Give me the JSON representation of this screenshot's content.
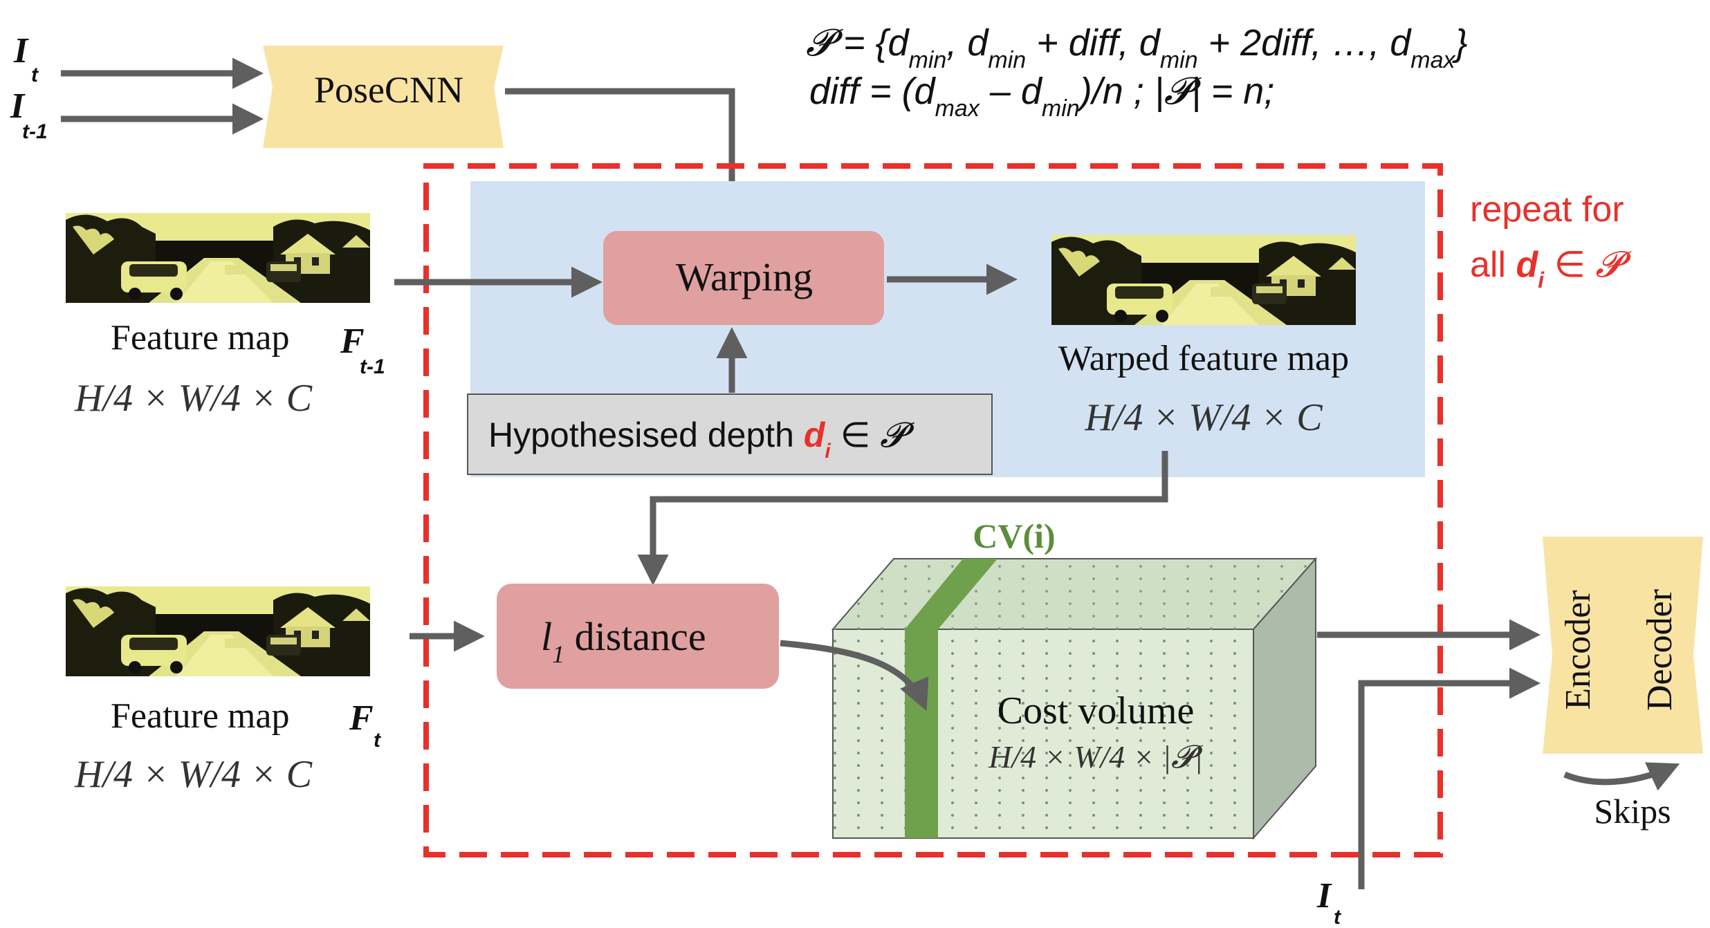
{
  "colors": {
    "arrow": "#5f5f5f",
    "posecnn_fill": "#f9e3a3",
    "warp_region_fill": "#d3e2f2",
    "node_fill": "#e0a0a0",
    "hyp_fill": "#d9d9d9",
    "repeat_box": "#e8312a",
    "cost_front": "#dfebd6",
    "cost_top": "#cfdfc5",
    "cost_side": "#adbcaa",
    "cv_slice": "#6fa14c",
    "cv_label": "#5b8e3a",
    "encdec_fill": "#f9e3a3",
    "highlight_red": "#e8312a"
  },
  "inputs": {
    "it_main": "I",
    "it_sub": "t",
    "it1_main": "I",
    "it1_sub": "t-1",
    "bottom_it_main": "I",
    "bottom_it_sub": "t"
  },
  "posecnn": {
    "label": "PoseCNN"
  },
  "formula": {
    "line1": {
      "p": "𝓟",
      "eq_open": " = {d",
      "sub_min": "min",
      "comma1": ", d",
      "plus1": " + diff, d",
      "plus2": " + 2diff, …, d",
      "sub_max": "max",
      "close": "}"
    },
    "line2": {
      "diff_eq": "diff = (d",
      "sub_max": "max",
      "minus": " – d",
      "sub_min": "min",
      "div": ")/n ; |",
      "p": "𝓟",
      "tail": "| = n;"
    }
  },
  "repeat_note": {
    "line1": "repeat for",
    "line2_prefix": "all ",
    "d": "d",
    "d_sub": "i",
    "line2_suffix": " ∈ ",
    "p": "𝓟"
  },
  "feature_top": {
    "label": "Feature map",
    "symbol": "F",
    "symbol_sub": "t-1",
    "dims": "H/4 × W/4 × C"
  },
  "feature_bottom": {
    "label": "Feature map",
    "symbol": "F",
    "symbol_sub": "t",
    "dims": "H/4 × W/4 × C"
  },
  "warping": {
    "label": "Warping"
  },
  "hypothesis": {
    "prefix": "Hypothesised depth ",
    "d": "d",
    "d_sub": "i",
    "suffix": " ∈ ",
    "p": "𝓟"
  },
  "warped": {
    "label": "Warped feature map",
    "dims": "H/4 × W/4 × C"
  },
  "l1": {
    "l": "l",
    "sub": "1",
    "label": " distance"
  },
  "cv_label": "CV(i)",
  "cost_volume": {
    "label": "Cost volume",
    "dims": "H/4 × W/4 × |𝓟|"
  },
  "encdec": {
    "encoder": "Encoder",
    "decoder": "Decoder",
    "skips": "Skips"
  }
}
